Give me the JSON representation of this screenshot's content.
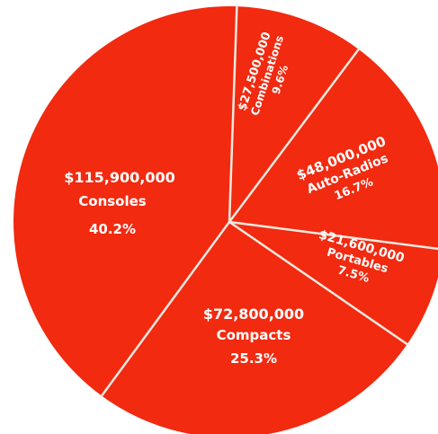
{
  "chart_data": {
    "type": "pie",
    "slices": [
      {
        "amount": "$27,500,000",
        "label": "Combinations",
        "percent_label": "9.6%",
        "value": 9.6
      },
      {
        "amount": "$48,000,000",
        "label": "Auto-Radios",
        "percent_label": "16.7%",
        "value": 16.7
      },
      {
        "amount": "$21,600,000",
        "label": "Portables",
        "percent_label": "7.5%",
        "value": 7.5
      },
      {
        "amount": "$72,800,000",
        "label": "Compacts",
        "percent_label": "25.3%",
        "value": 25.3
      },
      {
        "amount": "$115,900,000",
        "label": "Consoles",
        "percent_label": "40.2%",
        "value": 40.2
      }
    ],
    "colors": {
      "slice": "#f12a10",
      "divider": "#f3e9df",
      "background": "#ffffff"
    }
  }
}
